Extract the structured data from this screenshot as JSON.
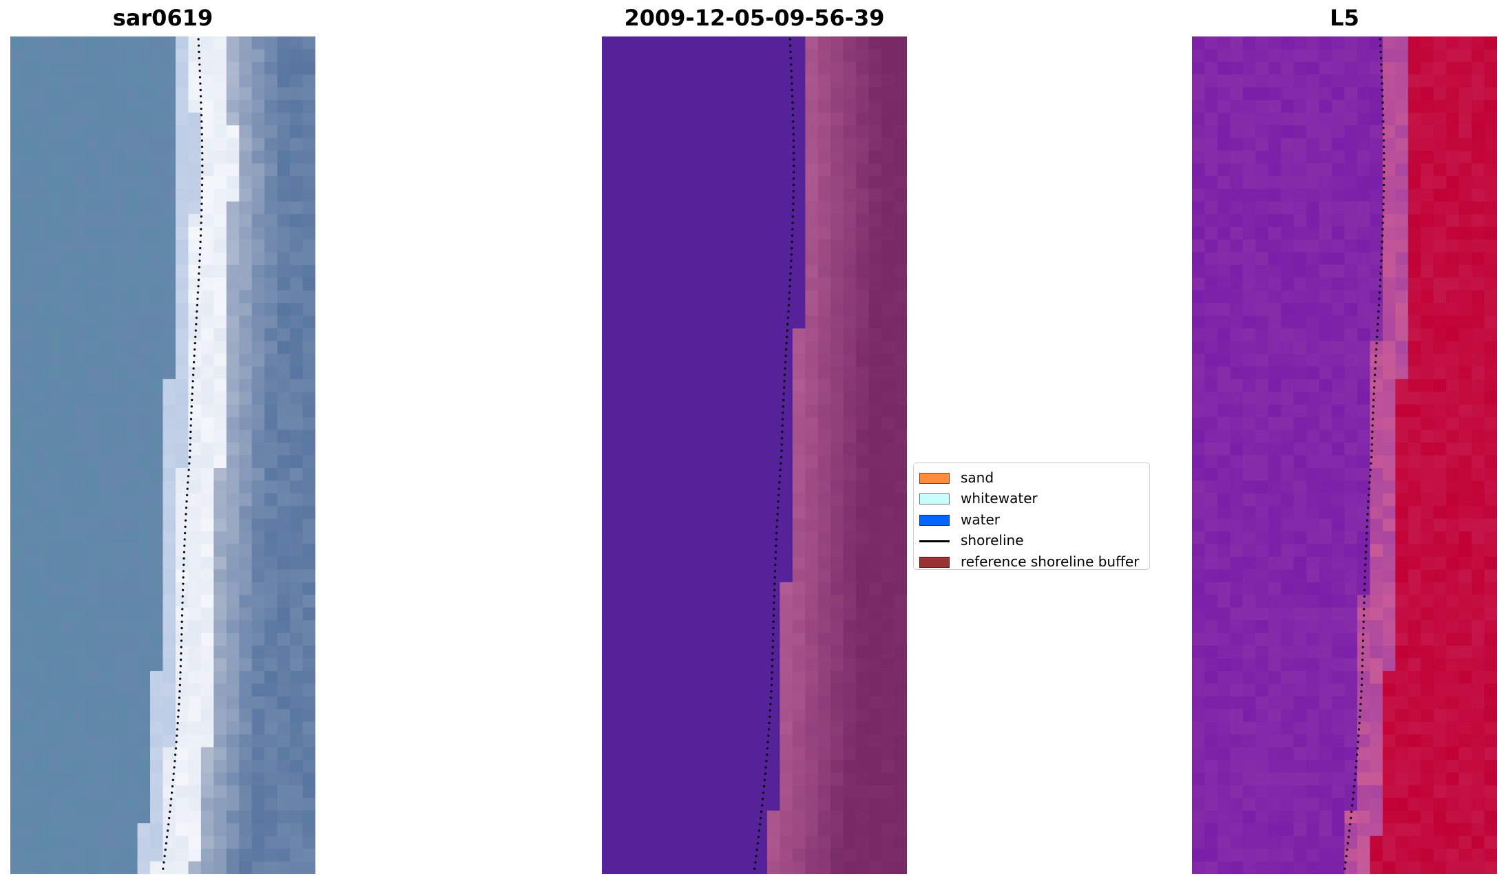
{
  "titles": {
    "left": "sar0619",
    "center": "2009-12-05-09-56-39",
    "right": "L5"
  },
  "legend": [
    {
      "label": "sand",
      "kind": "patch",
      "color": "#ff8c3c"
    },
    {
      "label": "whitewater",
      "kind": "patch",
      "color": "#c8fdfd"
    },
    {
      "label": "water",
      "kind": "patch",
      "color": "#0066ff"
    },
    {
      "label": "shoreline",
      "kind": "line",
      "color": "#000000"
    },
    {
      "label": "reference shoreline buffer",
      "kind": "patch",
      "color": "#993333"
    }
  ],
  "colors": {
    "rgb_water": "#5e8aa8",
    "rgb_surf": "#e4eaf4",
    "class_water": "#55229a",
    "class_sand_buffer": "#b25c94",
    "index_water": "#7a1fa8",
    "index_land": "#c20236"
  }
}
